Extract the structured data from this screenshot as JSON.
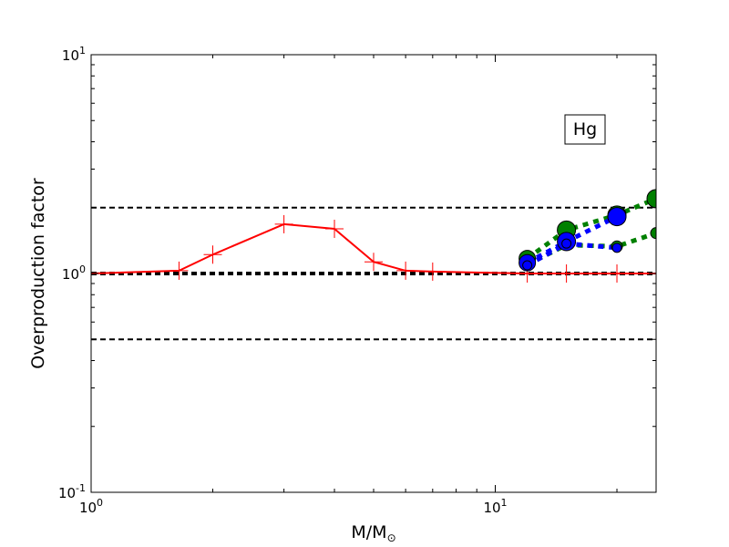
{
  "chart_data": {
    "type": "line",
    "xlabel_main": "M/M",
    "xlabel_sub": "⊙",
    "ylabel": "Overproduction factor",
    "x_scale": "log",
    "y_scale": "log",
    "xlim": [
      1,
      25
    ],
    "ylim": [
      0.1,
      10
    ],
    "annotation": "Hg",
    "ticks": {
      "x": [
        {
          "value": 1,
          "base": "10",
          "exp": "0"
        },
        {
          "value": 10,
          "base": "10",
          "exp": "1"
        }
      ],
      "y": [
        {
          "value": 0.1,
          "base": "10",
          "exp": "-1"
        },
        {
          "value": 1,
          "base": "10",
          "exp": "0"
        },
        {
          "value": 10,
          "base": "10",
          "exp": "1"
        }
      ]
    },
    "reference_lines": [
      {
        "y": 2.0,
        "style": "dashed-thin"
      },
      {
        "y": 1.0,
        "style": "dashed-thick"
      },
      {
        "y": 0.5,
        "style": "dashed-thin"
      }
    ],
    "series": [
      {
        "color": "#ff0000",
        "line": "solid",
        "marker": "plus",
        "x": [
          1.0,
          1.65,
          2.0,
          3.0,
          4.0,
          5.0,
          6.0,
          7.0,
          12.0,
          15.0,
          20.0,
          25.0
        ],
        "y": [
          1.0,
          1.03,
          1.22,
          1.68,
          1.6,
          1.13,
          1.03,
          1.02,
          1.0,
          1.0,
          1.0,
          1.0
        ]
      },
      {
        "color": "#008000",
        "line": "dotted",
        "marker": "circle",
        "x": [
          12.0,
          15.0,
          20.0,
          25.0
        ],
        "y": [
          1.17,
          1.58,
          1.85,
          2.2
        ],
        "sizes": [
          9,
          10,
          10,
          10
        ]
      },
      {
        "color": "#008000",
        "line": "dotted",
        "marker": "circle",
        "x": [
          12.0,
          15.0,
          20.0,
          25.0
        ],
        "y": [
          1.1,
          1.35,
          1.33,
          1.53
        ],
        "sizes": [
          6,
          6,
          6,
          6
        ]
      },
      {
        "color": "#0000ff",
        "line": "dotted",
        "marker": "circle",
        "x": [
          12.0,
          15.0,
          20.0
        ],
        "y": [
          1.12,
          1.4,
          1.82
        ],
        "sizes": [
          9,
          10,
          10
        ]
      },
      {
        "color": "#0000ff",
        "line": "dotted",
        "marker": "circle",
        "x": [
          12.0,
          15.0,
          20.0
        ],
        "y": [
          1.09,
          1.37,
          1.31
        ],
        "sizes": [
          5,
          5,
          5
        ]
      }
    ]
  }
}
